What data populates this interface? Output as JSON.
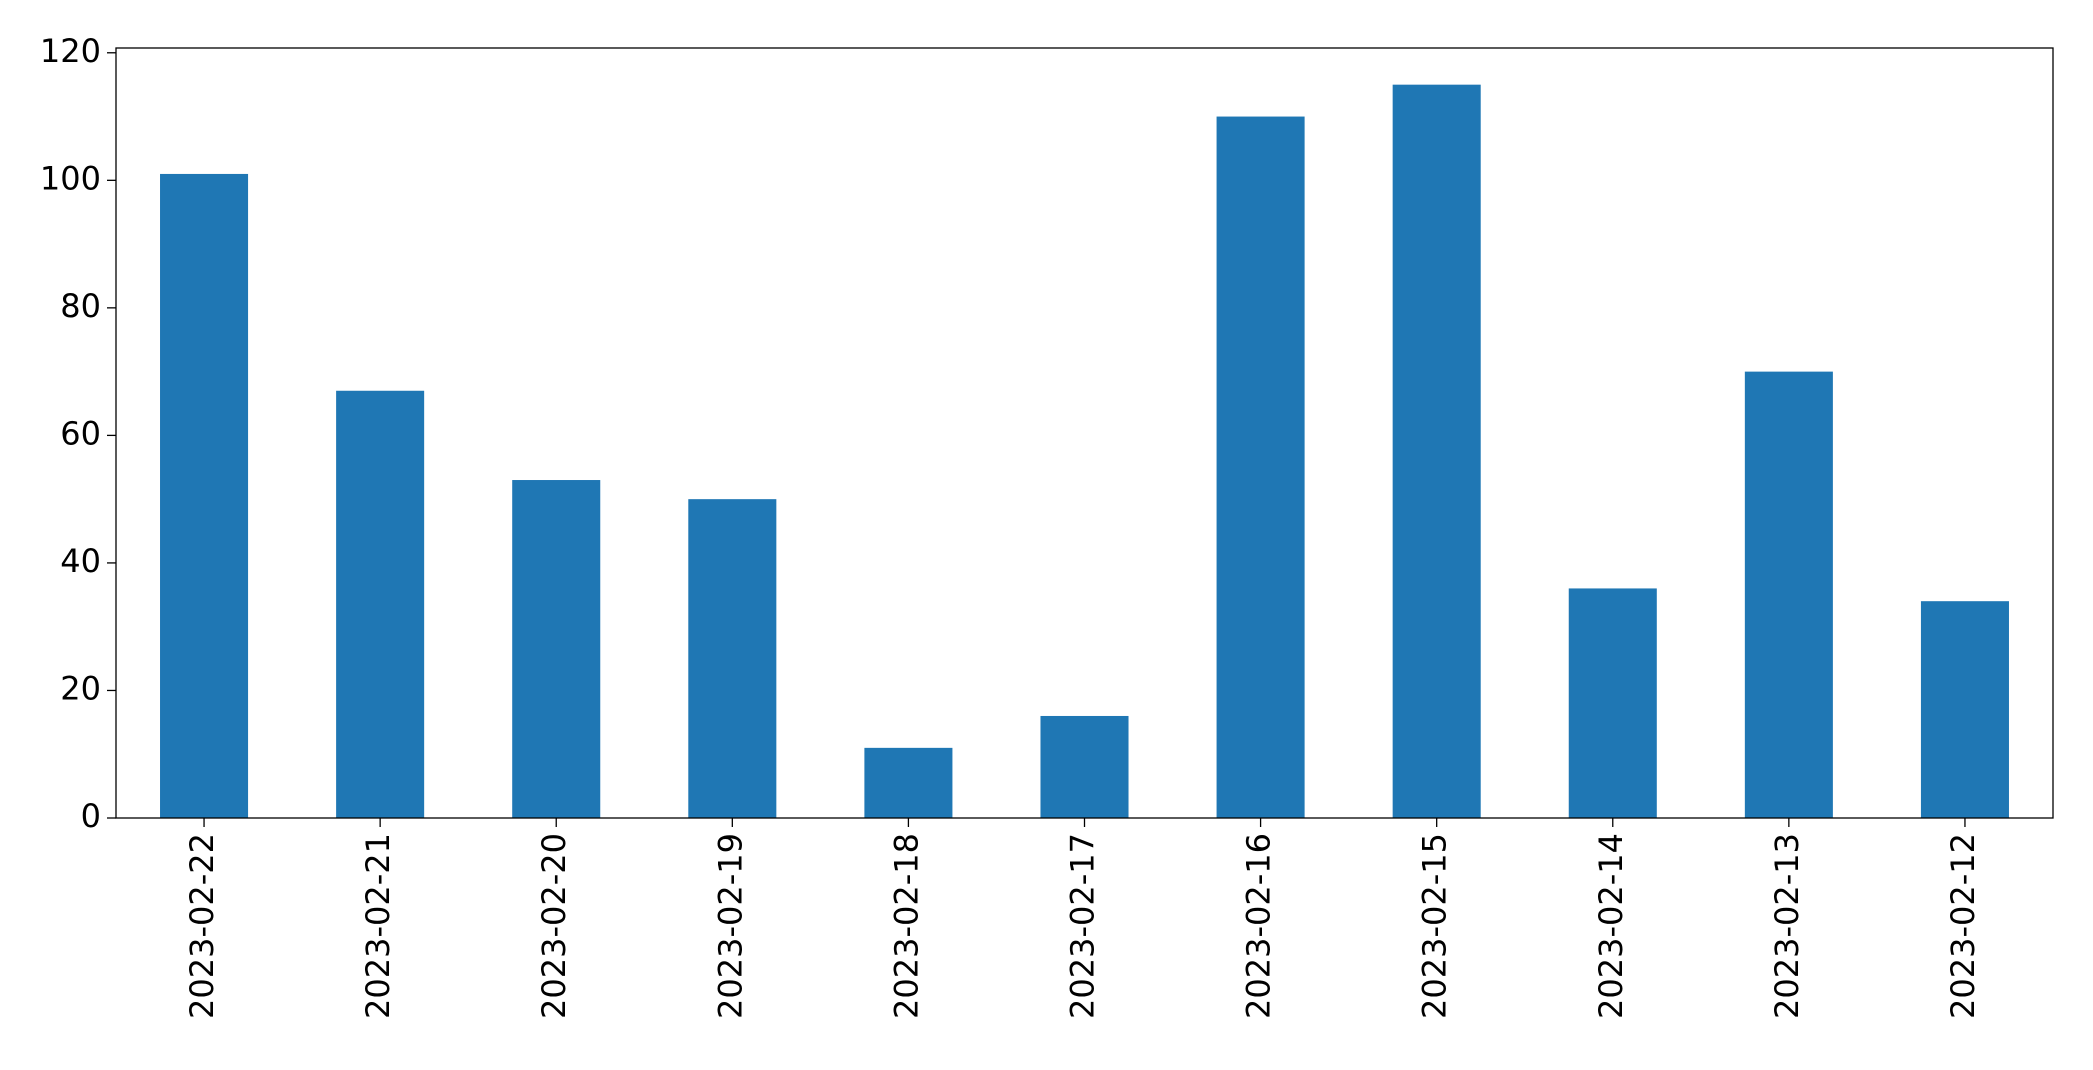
{
  "chart_data": {
    "type": "bar",
    "categories": [
      "2023-02-22",
      "2023-02-21",
      "2023-02-20",
      "2023-02-19",
      "2023-02-18",
      "2023-02-17",
      "2023-02-16",
      "2023-02-15",
      "2023-02-14",
      "2023-02-13",
      "2023-02-12"
    ],
    "values": [
      101,
      67,
      53,
      50,
      11,
      16,
      110,
      115,
      36,
      70,
      34
    ],
    "color": "#1f77b4",
    "ylim": [
      0,
      120.75
    ],
    "yticks": [
      0,
      20,
      40,
      60,
      80,
      100,
      120
    ],
    "grid": false
  }
}
